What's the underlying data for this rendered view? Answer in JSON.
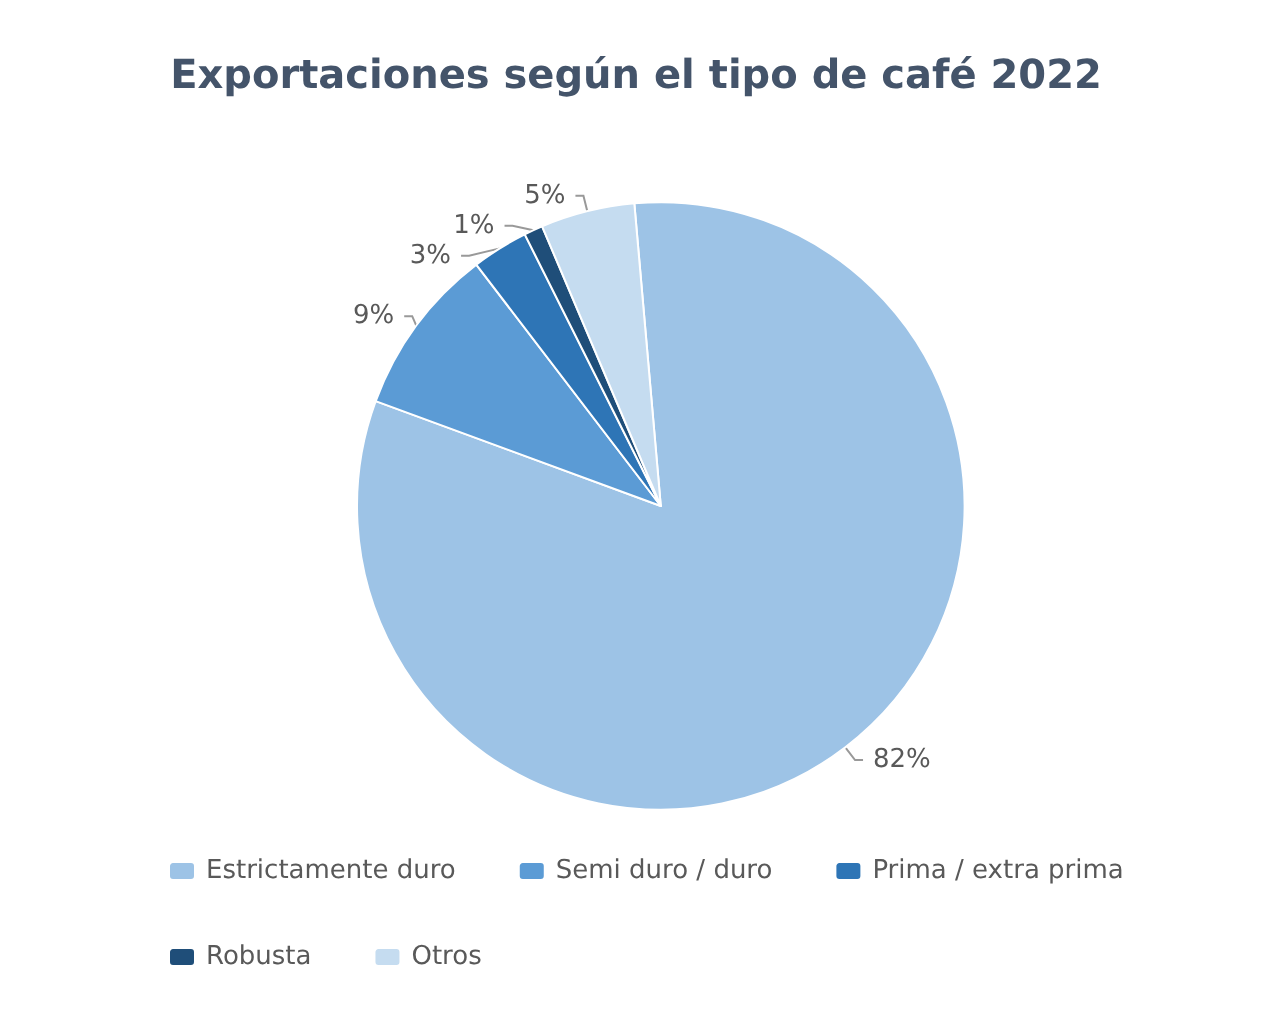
{
  "chart_data": {
    "type": "pie",
    "title": "Exportaciones según el tipo de café 2022",
    "categories": [
      "Estrictamente duro",
      "Semi duro / duro",
      "Prima / extra prima",
      "Robusta",
      "Otros"
    ],
    "values": [
      82,
      9,
      3,
      1,
      5
    ],
    "value_labels": [
      "82%",
      "9%",
      "3%",
      "1%",
      "5%"
    ],
    "colors": [
      "#9dc3e6",
      "#5b9bd5",
      "#2e75b6",
      "#1f4e79",
      "#c5dcf0"
    ],
    "legend": "bottom"
  }
}
